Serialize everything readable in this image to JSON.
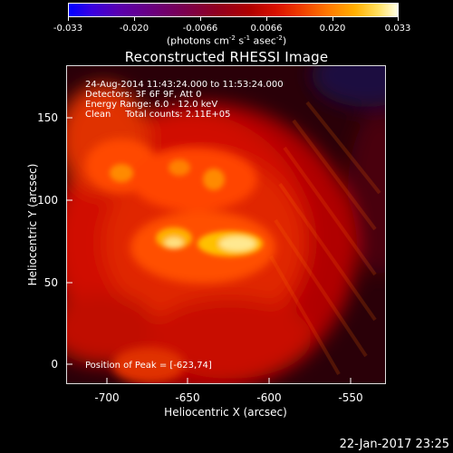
{
  "colorbar": {
    "tick_labels": [
      "-0.033",
      "-0.020",
      "-0.0066",
      "0.0066",
      "0.020",
      "0.033"
    ],
    "units_prefix": "(photons cm",
    "units_exp1": "-2",
    "units_mid1": " s",
    "units_exp2": "-1",
    "units_mid2": " asec",
    "units_exp3": "-2",
    "units_suffix": ")"
  },
  "title": "Reconstructed RHESSI Image",
  "info": {
    "time_range": "24-Aug-2014 11:43:24.000 to 11:53:24.000",
    "detectors": "Detectors: 3F 6F 9F, Att 0",
    "energy": "Energy Range: 6.0 - 12.0 keV",
    "algorithm": "Clean     Total counts: 2.11E+05",
    "peak": "Position of Peak = [-623,74]"
  },
  "axes": {
    "xlabel": "Heliocentric X (arcsec)",
    "ylabel": "Heliocentric Y (arcsec)",
    "x_ticks": [
      "-700",
      "-650",
      "-600",
      "-550"
    ],
    "y_ticks": [
      "0",
      "50",
      "100",
      "150"
    ]
  },
  "timestamp": "22-Jan-2017 23:25"
}
